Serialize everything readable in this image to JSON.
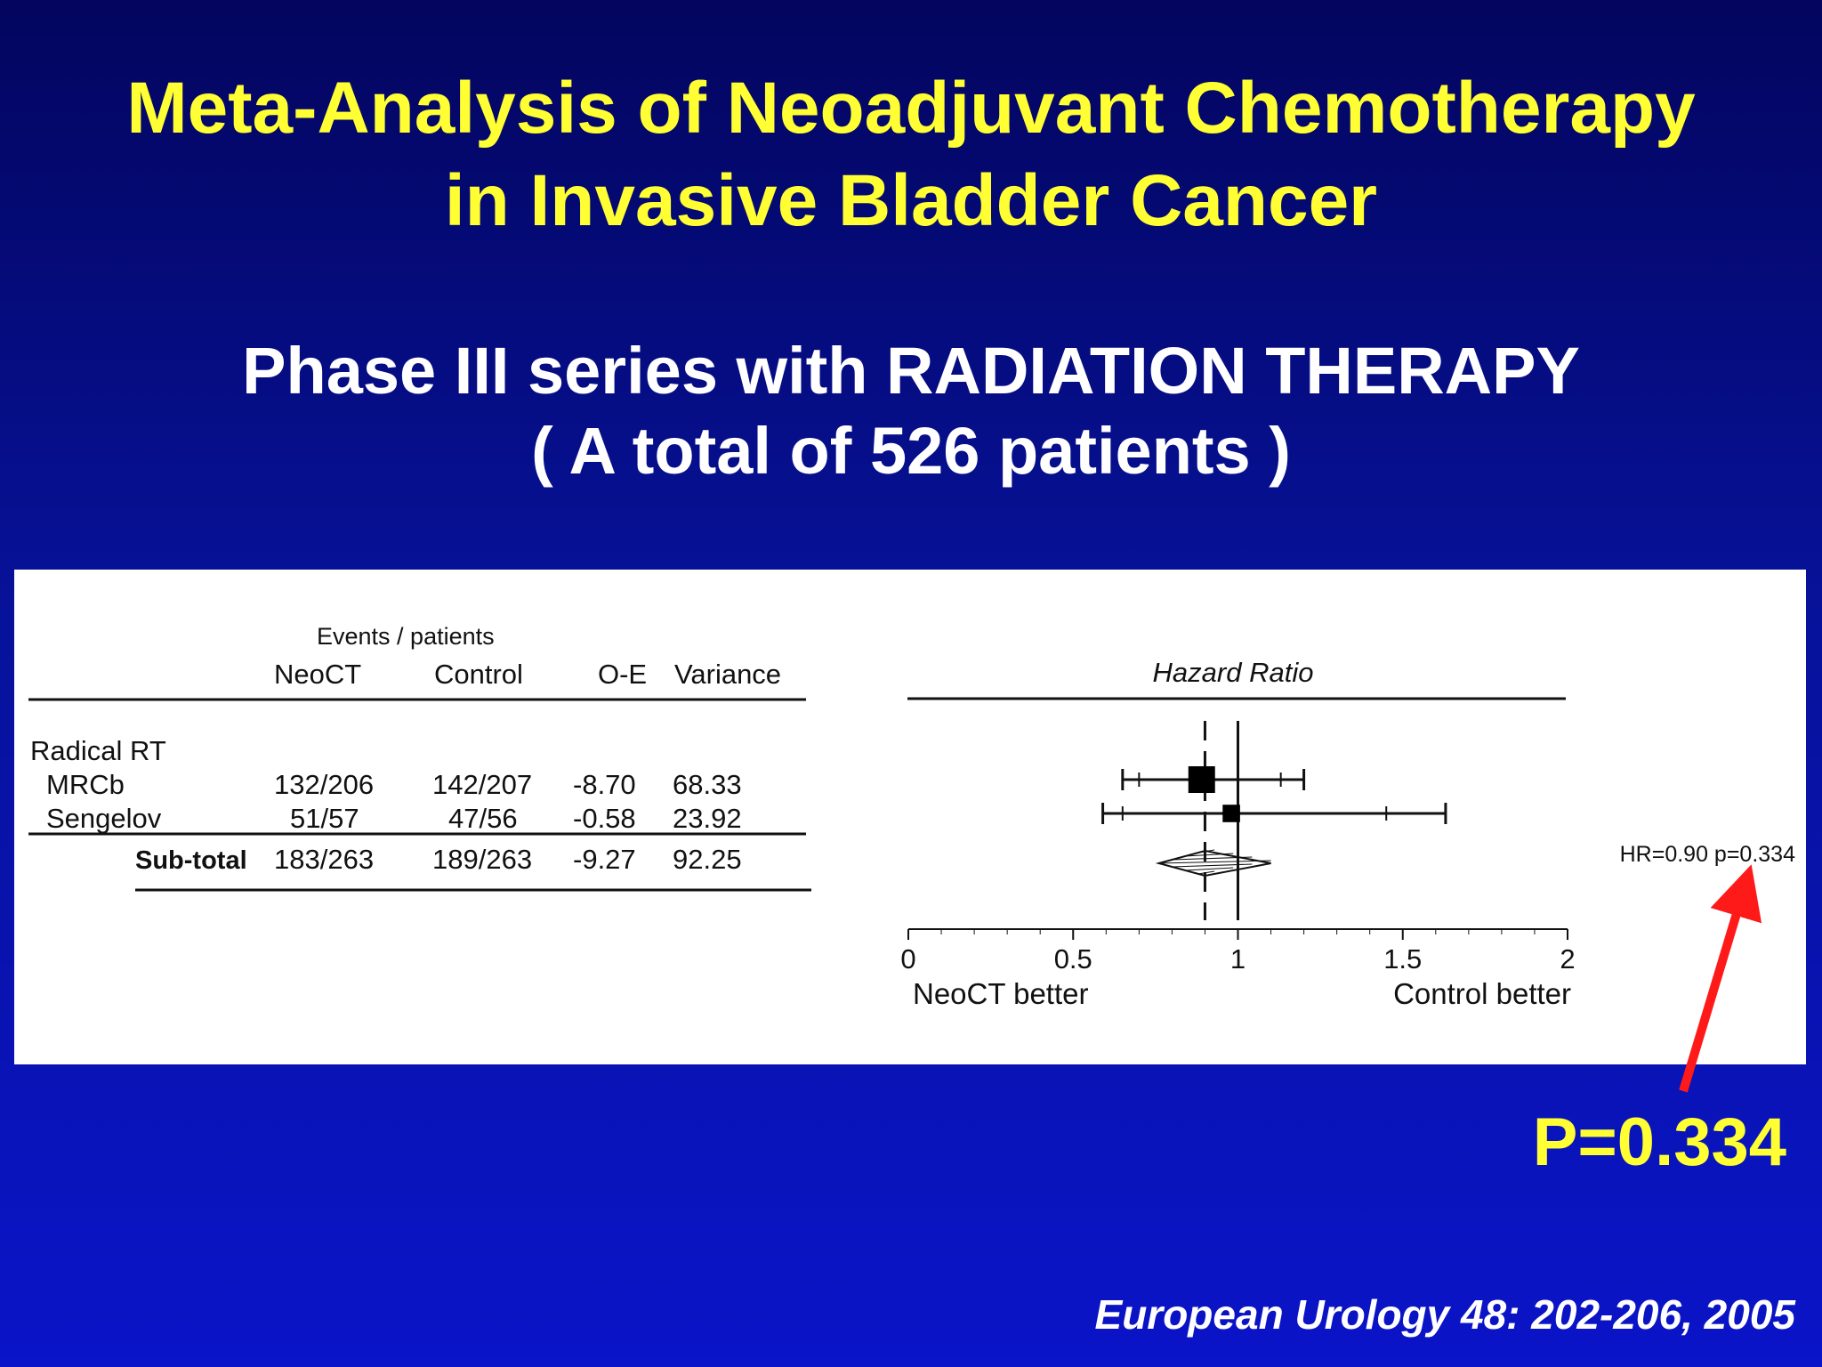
{
  "slide": {
    "title_line1": "Meta-Analysis of Neoadjuvant Chemotherapy",
    "title_line2": "in Invasive Bladder Cancer",
    "subtitle_line1": "Phase III series with RADIATION THERAPY",
    "subtitle_line2": "( A total of 526 patients )",
    "p_value_callout": "P=0.334",
    "citation": "European Urology 48: 202-206, 2005",
    "colors": {
      "title": "#ffff33",
      "arrow": "#ff1a1a",
      "background": "#07129a"
    }
  },
  "table": {
    "group_header": "Events / patients",
    "columns": [
      "NeoCT",
      "Control",
      "O-E",
      "Variance"
    ],
    "section_label": "Radical RT",
    "rows": [
      {
        "name": "MRCb",
        "neoct": "132/206",
        "control": "142/207",
        "oe": "-8.70",
        "variance": "68.33"
      },
      {
        "name": "Sengelov",
        "neoct": "51/57",
        "control": "47/56",
        "oe": "-0.58",
        "variance": "23.92"
      }
    ],
    "subtotal": {
      "name": "Sub-total",
      "neoct": "183/263",
      "control": "189/263",
      "oe": "-9.27",
      "variance": "92.25"
    }
  },
  "chart_data": {
    "type": "forest",
    "title": "Hazard Ratio",
    "xlim": [
      0,
      2
    ],
    "x_ticks": [
      0,
      0.5,
      1,
      1.5,
      2
    ],
    "x_tick_labels": [
      "0",
      "0.5",
      "1",
      "1.5",
      "2"
    ],
    "left_label": "NeoCT better",
    "right_label": "Control better",
    "reference_line": 1,
    "pooled_line": 0.9,
    "studies": [
      {
        "name": "MRCb",
        "hr": 0.89,
        "ci99": [
          0.65,
          1.2
        ],
        "ci95": [
          0.7,
          1.13
        ],
        "weight": 68.33
      },
      {
        "name": "Sengelov",
        "hr": 0.98,
        "ci99": [
          0.59,
          1.63
        ],
        "ci95": [
          0.65,
          1.45
        ],
        "weight": 23.92
      }
    ],
    "pooled": {
      "hr": 0.9,
      "ci95": [
        0.76,
        1.1
      ]
    },
    "annotation": "HR=0.90 p=0.334"
  }
}
